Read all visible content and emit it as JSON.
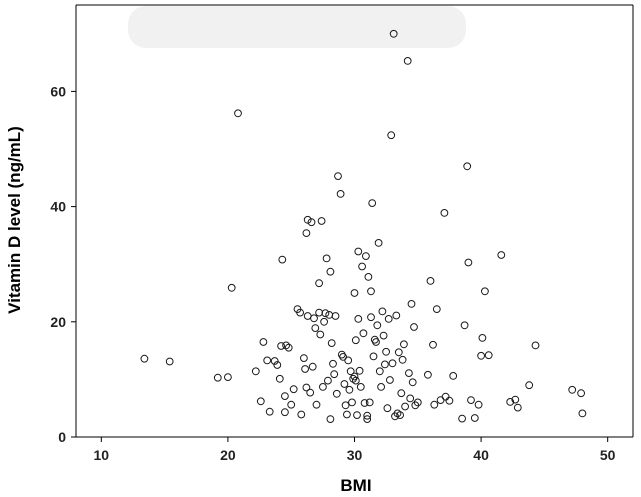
{
  "chart_data": {
    "type": "scatter",
    "xlabel": "BMI",
    "ylabel": "Vitamin D level (ng/mL)",
    "xlim": [
      8,
      52
    ],
    "ylim": [
      0,
      75
    ],
    "xticks": [
      10,
      20,
      30,
      40,
      50
    ],
    "yticks": [
      0,
      20,
      40,
      60
    ],
    "grid": false,
    "legend": "none",
    "marker": "open-circle",
    "marker_color": "#1a1a1a",
    "points": [
      [
        13.4,
        13.6
      ],
      [
        15.4,
        13.1
      ],
      [
        19.2,
        10.3
      ],
      [
        20.0,
        10.4
      ],
      [
        20.3,
        25.9
      ],
      [
        20.8,
        56.2
      ],
      [
        22.2,
        11.4
      ],
      [
        22.6,
        6.2
      ],
      [
        22.8,
        16.5
      ],
      [
        23.1,
        13.3
      ],
      [
        23.3,
        4.4
      ],
      [
        23.7,
        13.2
      ],
      [
        23.9,
        12.5
      ],
      [
        24.1,
        10.1
      ],
      [
        24.2,
        15.8
      ],
      [
        24.3,
        30.8
      ],
      [
        24.5,
        4.3
      ],
      [
        24.5,
        7.1
      ],
      [
        24.6,
        15.9
      ],
      [
        24.8,
        15.5
      ],
      [
        25.0,
        5.6
      ],
      [
        25.2,
        8.3
      ],
      [
        25.5,
        22.2
      ],
      [
        25.7,
        21.6
      ],
      [
        25.8,
        3.9
      ],
      [
        26.0,
        13.7
      ],
      [
        26.1,
        11.8
      ],
      [
        26.2,
        8.6
      ],
      [
        26.2,
        35.4
      ],
      [
        26.3,
        37.7
      ],
      [
        26.3,
        21.0
      ],
      [
        26.5,
        7.7
      ],
      [
        26.6,
        37.3
      ],
      [
        26.7,
        12.2
      ],
      [
        26.8,
        20.6
      ],
      [
        26.9,
        18.9
      ],
      [
        27.0,
        5.6
      ],
      [
        27.2,
        21.6
      ],
      [
        27.2,
        26.7
      ],
      [
        27.3,
        17.8
      ],
      [
        27.4,
        37.5
      ],
      [
        27.5,
        8.7
      ],
      [
        27.6,
        20.0
      ],
      [
        27.7,
        21.5
      ],
      [
        27.8,
        31.0
      ],
      [
        27.9,
        9.8
      ],
      [
        28.0,
        21.2
      ],
      [
        28.1,
        3.1
      ],
      [
        28.1,
        28.7
      ],
      [
        28.2,
        16.3
      ],
      [
        28.3,
        12.7
      ],
      [
        28.4,
        10.9
      ],
      [
        28.5,
        21.0
      ],
      [
        28.6,
        7.5
      ],
      [
        28.7,
        45.3
      ],
      [
        28.9,
        42.2
      ],
      [
        29.0,
        14.3
      ],
      [
        29.1,
        13.9
      ],
      [
        29.2,
        9.2
      ],
      [
        29.3,
        5.5
      ],
      [
        29.4,
        3.9
      ],
      [
        29.5,
        13.3
      ],
      [
        29.6,
        8.2
      ],
      [
        29.7,
        11.4
      ],
      [
        29.8,
        6.0
      ],
      [
        29.9,
        10.1
      ],
      [
        30.0,
        25.0
      ],
      [
        30.0,
        10.5
      ],
      [
        30.1,
        16.8
      ],
      [
        30.1,
        9.8
      ],
      [
        30.2,
        3.8
      ],
      [
        30.3,
        32.2
      ],
      [
        30.3,
        20.5
      ],
      [
        30.4,
        11.5
      ],
      [
        30.5,
        8.7
      ],
      [
        30.6,
        29.6
      ],
      [
        30.7,
        18.0
      ],
      [
        30.8,
        5.9
      ],
      [
        30.9,
        31.4
      ],
      [
        31.0,
        3.1
      ],
      [
        31.0,
        3.7
      ],
      [
        31.1,
        27.8
      ],
      [
        31.2,
        6.0
      ],
      [
        31.3,
        20.8
      ],
      [
        31.3,
        25.3
      ],
      [
        31.4,
        40.6
      ],
      [
        31.5,
        14.0
      ],
      [
        31.6,
        16.9
      ],
      [
        31.7,
        16.5
      ],
      [
        31.8,
        19.4
      ],
      [
        31.9,
        33.7
      ],
      [
        32.0,
        11.4
      ],
      [
        32.1,
        8.7
      ],
      [
        32.2,
        21.8
      ],
      [
        32.3,
        17.6
      ],
      [
        32.4,
        12.6
      ],
      [
        32.5,
        14.8
      ],
      [
        32.6,
        5.0
      ],
      [
        32.7,
        20.5
      ],
      [
        32.8,
        9.9
      ],
      [
        32.9,
        52.4
      ],
      [
        33.0,
        12.8
      ],
      [
        33.1,
        70.0
      ],
      [
        33.2,
        3.6
      ],
      [
        33.3,
        21.1
      ],
      [
        33.4,
        4.1
      ],
      [
        33.5,
        14.7
      ],
      [
        33.6,
        3.8
      ],
      [
        33.7,
        7.6
      ],
      [
        33.8,
        13.4
      ],
      [
        33.9,
        16.1
      ],
      [
        34.0,
        5.3
      ],
      [
        34.2,
        65.3
      ],
      [
        34.3,
        11.1
      ],
      [
        34.4,
        6.7
      ],
      [
        34.5,
        23.1
      ],
      [
        34.6,
        9.5
      ],
      [
        34.7,
        19.1
      ],
      [
        34.8,
        5.5
      ],
      [
        35.0,
        6.0
      ],
      [
        35.8,
        10.8
      ],
      [
        36.0,
        27.1
      ],
      [
        36.2,
        16.0
      ],
      [
        36.3,
        5.6
      ],
      [
        36.5,
        22.2
      ],
      [
        36.8,
        6.4
      ],
      [
        37.1,
        38.9
      ],
      [
        37.2,
        7.0
      ],
      [
        37.5,
        6.3
      ],
      [
        37.8,
        10.6
      ],
      [
        38.5,
        3.2
      ],
      [
        38.7,
        19.4
      ],
      [
        38.9,
        47.0
      ],
      [
        39.0,
        30.3
      ],
      [
        39.2,
        6.4
      ],
      [
        39.5,
        3.3
      ],
      [
        39.8,
        5.6
      ],
      [
        40.0,
        14.1
      ],
      [
        40.1,
        17.2
      ],
      [
        40.3,
        25.3
      ],
      [
        40.6,
        14.2
      ],
      [
        41.6,
        31.6
      ],
      [
        42.3,
        6.1
      ],
      [
        42.7,
        6.5
      ],
      [
        42.9,
        5.1
      ],
      [
        43.8,
        9.0
      ],
      [
        44.3,
        15.9
      ],
      [
        47.2,
        8.2
      ],
      [
        47.9,
        7.6
      ],
      [
        48.0,
        4.1
      ]
    ]
  }
}
